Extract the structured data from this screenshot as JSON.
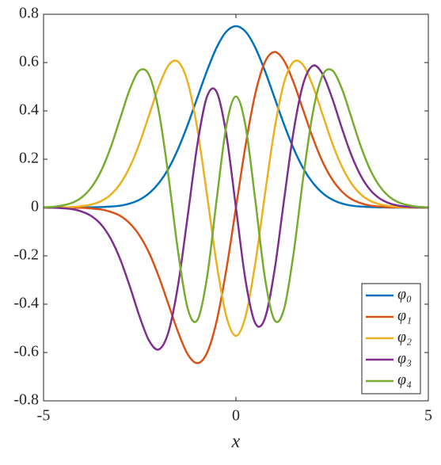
{
  "chart_data": {
    "type": "line",
    "x_label": "x",
    "x": [
      -5,
      -4.75,
      -4.5,
      -4.25,
      -4,
      -3.75,
      -3.5,
      -3.25,
      -3,
      -2.75,
      -2.5,
      -2.25,
      -2,
      -1.75,
      -1.5,
      -1.25,
      -1,
      -0.75,
      -0.5,
      -0.25,
      0,
      0.25,
      0.5,
      0.75,
      1,
      1.25,
      1.5,
      1.75,
      2,
      2.25,
      2.5,
      2.75,
      3,
      3.25,
      3.5,
      3.75,
      4,
      4.25,
      4.5,
      4.75,
      5
    ],
    "series": [
      {
        "name": "φ₀",
        "color": "#0072BD",
        "values": [
          0,
          0,
          0,
          0,
          0,
          0.001,
          0.002,
          0.004,
          0.008,
          0.017,
          0.033,
          0.06,
          0.102,
          0.162,
          0.244,
          0.344,
          0.456,
          0.567,
          0.663,
          0.728,
          0.751,
          0.728,
          0.663,
          0.567,
          0.456,
          0.344,
          0.244,
          0.162,
          0.102,
          0.06,
          0.033,
          0.017,
          0.008,
          0.004,
          0.002,
          0.001,
          0,
          0,
          0,
          0,
          0
        ]
      },
      {
        "name": "φ₁",
        "color": "#D95319",
        "values": [
          0,
          0,
          0,
          -0.001,
          -0.001,
          -0.004,
          -0.008,
          -0.018,
          -0.035,
          -0.067,
          -0.117,
          -0.19,
          -0.288,
          -0.402,
          -0.517,
          -0.608,
          -0.644,
          -0.601,
          -0.469,
          -0.257,
          0,
          0.257,
          0.469,
          0.601,
          0.644,
          0.608,
          0.517,
          0.402,
          0.288,
          0.19,
          0.117,
          0.067,
          0.035,
          0.018,
          0.008,
          0.004,
          0.001,
          0.001,
          0,
          0,
          0
        ]
      },
      {
        "name": "φ₂",
        "color": "#EDB120",
        "values": [
          0,
          0,
          0.001,
          0.002,
          0.006,
          0.013,
          0.027,
          0.054,
          0.1,
          0.171,
          0.268,
          0.386,
          0.503,
          0.589,
          0.603,
          0.517,
          0.322,
          0.05,
          -0.234,
          -0.45,
          -0.531,
          -0.45,
          -0.234,
          0.05,
          0.322,
          0.517,
          0.603,
          0.589,
          0.503,
          0.386,
          0.268,
          0.171,
          0.1,
          0.054,
          0.027,
          0.013,
          0.006,
          0.002,
          0.001,
          0,
          0
        ]
      },
      {
        "name": "φ₃",
        "color": "#7E2F8E",
        "values": [
          0,
          -0.001,
          -0.003,
          -0.007,
          -0.017,
          -0.036,
          -0.071,
          -0.13,
          -0.217,
          -0.33,
          -0.453,
          -0.553,
          -0.587,
          -0.513,
          -0.317,
          -0.031,
          0.263,
          0.46,
          0.478,
          0.302,
          0,
          -0.302,
          -0.478,
          -0.46,
          -0.263,
          0.031,
          0.317,
          0.513,
          0.587,
          0.553,
          0.453,
          0.33,
          0.217,
          0.13,
          0.071,
          0.036,
          0.017,
          0.007,
          0.003,
          0.001,
          0
        ]
      },
      {
        "name": "φ₄",
        "color": "#77AC30",
        "values": [
          0.001,
          0.003,
          0.009,
          0.02,
          0.043,
          0.085,
          0.153,
          0.251,
          0.373,
          0.493,
          0.568,
          0.546,
          0.394,
          0.125,
          -0.187,
          -0.42,
          -0.465,
          -0.288,
          0.034,
          0.337,
          0.46,
          0.337,
          0.034,
          -0.288,
          -0.465,
          -0.42,
          -0.187,
          0.125,
          0.394,
          0.546,
          0.568,
          0.493,
          0.373,
          0.251,
          0.153,
          0.085,
          0.043,
          0.02,
          0.009,
          0.003,
          0.001
        ]
      }
    ],
    "xlim": [
      -5,
      5
    ],
    "xticks": [
      -5,
      0,
      5
    ],
    "ylim": [
      -0.8,
      0.8
    ],
    "yticks": [
      -0.8,
      -0.6,
      -0.4,
      -0.2,
      0,
      0.2,
      0.4,
      0.6,
      0.8
    ],
    "grid": false,
    "legend": "lower right"
  }
}
